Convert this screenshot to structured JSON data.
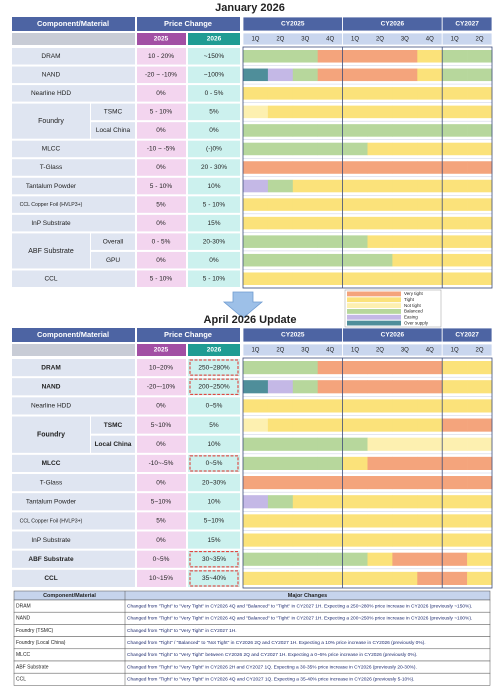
{
  "legend": [
    {
      "name": "Very tight",
      "color": "#f4a47c"
    },
    {
      "name": "Tight",
      "color": "#fbe27a"
    },
    {
      "name": "Not tight",
      "color": "#fdf0b0"
    },
    {
      "name": "Balanced",
      "color": "#b7d79c"
    },
    {
      "name": "Easing",
      "color": "#c4b8e6"
    },
    {
      "name": "Over supply",
      "color": "#4f8e9a"
    }
  ],
  "january": {
    "title": "January 2026",
    "header": {
      "component": "Component/Material",
      "price_change": "Price Change",
      "y2025": "2025",
      "y2026": "2026",
      "years": [
        {
          "name": "CY2025",
          "quarters": [
            "1Q",
            "2Q",
            "3Q",
            "4Q"
          ]
        },
        {
          "name": "CY2026",
          "quarters": [
            "1Q",
            "2Q",
            "3Q",
            "4Q"
          ]
        },
        {
          "name": "CY2027",
          "quarters": [
            "1Q",
            "2Q"
          ]
        }
      ]
    },
    "rows": [
      {
        "name": "DRAM",
        "p2025": "10 - 20%",
        "p2026": "~150%",
        "supply": [
          "Balanced",
          "Balanced",
          "Balanced",
          "Very tight",
          "Very tight",
          "Very tight",
          "Very tight",
          "Tight",
          "Balanced",
          "Balanced"
        ]
      },
      {
        "name": "NAND",
        "p2025": "-20 ~ -10%",
        "p2026": "~100%",
        "supply": [
          "Over supply",
          "Easing",
          "Balanced",
          "Very tight",
          "Very tight",
          "Very tight",
          "Very tight",
          "Tight",
          "Balanced",
          "Balanced"
        ]
      },
      {
        "name": "Nearline HDD",
        "p2025": "0%",
        "p2026": "0 - 5%",
        "supply": [
          "Tight",
          "Tight",
          "Tight",
          "Tight",
          "Tight",
          "Tight",
          "Tight",
          "Tight",
          "Tight",
          "Tight"
        ]
      },
      {
        "name": "Foundry",
        "subs": [
          {
            "name": "TSMC",
            "p2025": "5 - 10%",
            "p2026": "5%",
            "supply": [
              "Not tight",
              "Tight",
              "Tight",
              "Tight",
              "Tight",
              "Tight",
              "Tight",
              "Tight",
              "Tight",
              "Tight"
            ]
          },
          {
            "name": "Local China",
            "p2025": "0%",
            "p2026": "0%",
            "supply": [
              "Balanced",
              "Balanced",
              "Balanced",
              "Balanced",
              "Balanced",
              "Balanced",
              "Balanced",
              "Balanced",
              "Balanced",
              "Balanced"
            ]
          }
        ]
      },
      {
        "name": "MLCC",
        "p2025": "-10 ~ -5%",
        "p2026": "(-)0%",
        "supply": [
          "Balanced",
          "Balanced",
          "Balanced",
          "Balanced",
          "Balanced",
          "Tight",
          "Tight",
          "Tight",
          "Tight",
          "Tight"
        ]
      },
      {
        "name": "T-Glass",
        "p2025": "0%",
        "p2026": "20 - 30%",
        "supply": [
          "Very tight",
          "Very tight",
          "Very tight",
          "Very tight",
          "Very tight",
          "Very tight",
          "Very tight",
          "Very tight",
          "Very tight",
          "Very tight"
        ]
      },
      {
        "name": "Tantalum Powder",
        "p2025": "5 - 10%",
        "p2026": "10%",
        "supply": [
          "Easing",
          "Balanced",
          "Tight",
          "Tight",
          "Tight",
          "Tight",
          "Tight",
          "Tight",
          "Tight",
          "Tight"
        ]
      },
      {
        "name": "CCL Copper Foil (HVLP3+)",
        "p2025": "5%",
        "p2026": "5 - 10%",
        "supply": [
          "Tight",
          "Tight",
          "Tight",
          "Tight",
          "Tight",
          "Tight",
          "Tight",
          "Tight",
          "Tight",
          "Tight"
        ]
      },
      {
        "name": "InP Substrate",
        "p2025": "0%",
        "p2026": "15%",
        "supply": [
          "Tight",
          "Tight",
          "Tight",
          "Tight",
          "Tight",
          "Tight",
          "Tight",
          "Tight",
          "Tight",
          "Tight"
        ]
      },
      {
        "name": "ABF Substrate",
        "subs": [
          {
            "name": "Overall",
            "p2025": "0 - 5%",
            "p2026": "20-30%",
            "supply": [
              "Balanced",
              "Balanced",
              "Balanced",
              "Balanced",
              "Balanced",
              "Tight",
              "Tight",
              "Tight",
              "Tight",
              "Tight"
            ]
          },
          {
            "name": "GPU",
            "p2025": "0%",
            "p2026": "0%",
            "supply": [
              "Balanced",
              "Balanced",
              "Balanced",
              "Balanced",
              "Balanced",
              "Balanced",
              "Tight",
              "Tight",
              "Tight",
              "Tight"
            ]
          }
        ]
      },
      {
        "name": "CCL",
        "p2025": "5 - 10%",
        "p2026": "5 - 10%",
        "supply": [
          "Tight",
          "Tight",
          "Tight",
          "Tight",
          "Tight",
          "Tight",
          "Tight",
          "Tight",
          "Tight",
          "Tight"
        ]
      }
    ]
  },
  "april": {
    "title": "April 2026 Update",
    "header": {
      "component": "Component/Material",
      "price_change": "Price Change",
      "y2025": "2025",
      "y2026": "2026",
      "years": [
        {
          "name": "CY2025",
          "quarters": [
            "1Q",
            "2Q",
            "3Q",
            "4Q"
          ]
        },
        {
          "name": "CY2026",
          "quarters": [
            "1Q",
            "2Q",
            "3Q",
            "4Q"
          ]
        },
        {
          "name": "CY2027",
          "quarters": [
            "1Q",
            "2Q"
          ]
        }
      ]
    },
    "rows": [
      {
        "name": "DRAM",
        "changed": true,
        "price_changed": true,
        "p2025": "10~20%",
        "p2026": "250~280%",
        "supply": [
          "Balanced",
          "Balanced",
          "Balanced",
          "Very tight",
          "Very tight",
          "Very tight",
          "Very tight",
          "Very tight",
          "Tight",
          "Tight"
        ]
      },
      {
        "name": "NAND",
        "changed": true,
        "price_changed": true,
        "p2025": "-20~-10%",
        "p2026": "200~250%",
        "supply": [
          "Over supply",
          "Easing",
          "Balanced",
          "Very tight",
          "Very tight",
          "Very tight",
          "Very tight",
          "Very tight",
          "Tight",
          "Tight"
        ]
      },
      {
        "name": "Nearline HDD",
        "p2025": "0%",
        "p2026": "0~5%",
        "supply": [
          "Tight",
          "Tight",
          "Tight",
          "Tight",
          "Tight",
          "Tight",
          "Tight",
          "Tight",
          "Tight",
          "Tight"
        ]
      },
      {
        "name": "Foundry",
        "changed": true,
        "subs": [
          {
            "name": "TSMC",
            "p2025": "5~10%",
            "p2026": "5%",
            "supply": [
              "Not tight",
              "Tight",
              "Tight",
              "Tight",
              "Tight",
              "Tight",
              "Tight",
              "Tight",
              "Very tight",
              "Very tight"
            ]
          },
          {
            "name": "Local China",
            "p2025": "0%",
            "p2026": "10%",
            "supply": [
              "Balanced",
              "Balanced",
              "Balanced",
              "Balanced",
              "Balanced",
              "Not tight",
              "Not tight",
              "Not tight",
              "Not tight",
              "Not tight"
            ]
          }
        ]
      },
      {
        "name": "MLCC",
        "changed": true,
        "price_changed": true,
        "p2025": "-10~-5%",
        "p2026": "0~5%",
        "supply": [
          "Balanced",
          "Balanced",
          "Balanced",
          "Balanced",
          "Tight",
          "Very tight",
          "Very tight",
          "Very tight",
          "Very tight",
          "Very tight"
        ]
      },
      {
        "name": "T-Glass",
        "p2025": "0%",
        "p2026": "20~30%",
        "supply": [
          "Very tight",
          "Very tight",
          "Very tight",
          "Very tight",
          "Very tight",
          "Very tight",
          "Very tight",
          "Very tight",
          "Very tight",
          "Very tight"
        ]
      },
      {
        "name": "Tantalum Powder",
        "p2025": "5~10%",
        "p2026": "10%",
        "supply": [
          "Easing",
          "Balanced",
          "Tight",
          "Tight",
          "Tight",
          "Tight",
          "Tight",
          "Tight",
          "Tight",
          "Tight"
        ]
      },
      {
        "name": "CCL Copper Foil (HVLP3+)",
        "p2025": "5%",
        "p2026": "5~10%",
        "supply": [
          "Tight",
          "Tight",
          "Tight",
          "Tight",
          "Tight",
          "Tight",
          "Tight",
          "Tight",
          "Tight",
          "Tight"
        ]
      },
      {
        "name": "InP Substrate",
        "p2025": "0%",
        "p2026": "15%",
        "supply": [
          "Tight",
          "Tight",
          "Tight",
          "Tight",
          "Tight",
          "Tight",
          "Tight",
          "Tight",
          "Tight",
          "Tight"
        ]
      },
      {
        "name": "ABF Substrate",
        "changed": true,
        "price_changed": true,
        "p2025": "0~5%",
        "p2026": "30~35%",
        "supply": [
          "Balanced",
          "Balanced",
          "Balanced",
          "Balanced",
          "Balanced",
          "Tight",
          "Very tight",
          "Very tight",
          "Very tight",
          "Tight"
        ]
      },
      {
        "name": "CCL",
        "changed": true,
        "price_changed": true,
        "p2025": "10~15%",
        "p2026": "35~40%",
        "supply": [
          "Tight",
          "Tight",
          "Tight",
          "Tight",
          "Tight",
          "Tight",
          "Tight",
          "Very tight",
          "Very tight",
          "Tight"
        ]
      }
    ]
  },
  "changes": {
    "header": [
      "Component/Material",
      "Major Changes"
    ],
    "rows": [
      [
        "DRAM",
        "Changed from \"Tight\" to \"Very Tight\" in CY2026 4Q and \"Balanced\" to \"Tight\" in CY2027 1H. Expecting a 250~280% price increase in CY2026 (previously ~150%)."
      ],
      [
        "NAND",
        "Changed from \"Tight\" to \"Very Tight\" in CY2026 4Q and \"Balanced\" to \"Tight\" in CY2027 1H. Expecting a 200~250% price increase in CY2026 (previously ~100%)."
      ],
      [
        "Foundry (TSMC)",
        "Changed from \"Tight\" to \"Very Tight\" in CY2027 1H."
      ],
      [
        "Foundry (Local China)",
        "Changed from \"Tight\" / \"Balanced\" to \"Not Tight\" in CY2026 2Q and CY2027 1H. Expecting a 10% price increase in CY2026 (previously 0%)."
      ],
      [
        "MLCC",
        "Changed from \"Tight\" to \"Very Tight\" between CY2026 2Q and CY2027 1H. Expecting a 0~5% price increase in CY2026 (previously 0%)."
      ],
      [
        "ABF Substrate",
        "Changed from \"Tight\" to \"Very Tight\" in CY2026 2H and CY2027 1Q. Expecting a 30-35% price increase in CY2026 (previously 20-30%)."
      ],
      [
        "CCL",
        "Changed from \"Tight\" to \"Very Tight\" in CY2026 4Q and CY2027 1Q. Expecting a 35-40% price increase in CY2026 (previously 5-10%)."
      ]
    ]
  }
}
